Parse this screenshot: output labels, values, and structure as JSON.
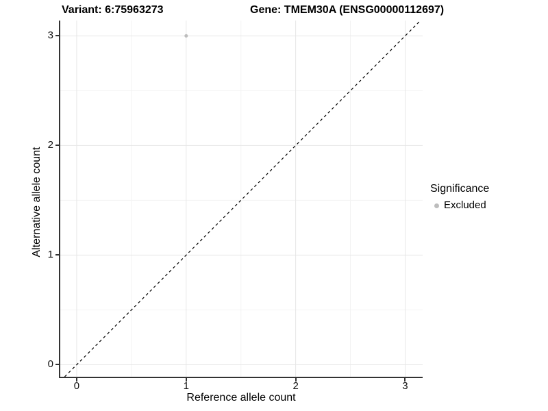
{
  "chart_data": {
    "type": "scatter",
    "titles": [
      "Variant: 6:75963273",
      "Gene: TMEM30A (ENSG00000112697)"
    ],
    "xlabel": "Reference allele count",
    "ylabel": "Alternative allele count",
    "xlim": [
      -0.15,
      3.16
    ],
    "ylim": [
      -0.11,
      3.14
    ],
    "x_ticks": [
      0,
      1,
      2,
      3
    ],
    "y_ticks": [
      0,
      1,
      2,
      3
    ],
    "x_minor_ticks": [
      0.5,
      1.5,
      2.5
    ],
    "y_minor_ticks": [
      0.5,
      1.5,
      2.5
    ],
    "grid": true,
    "series": [
      {
        "name": "Excluded",
        "color": "#bdbdbd",
        "points": [
          {
            "x": 1,
            "y": 3
          }
        ]
      }
    ],
    "reference_line": {
      "type": "identity",
      "slope": 1,
      "intercept": 0,
      "style": "dashed",
      "color": "#000000"
    },
    "legend": {
      "position": "right",
      "title": "Significance",
      "items": [
        {
          "label": "Excluded",
          "color": "#bdbdbd"
        }
      ]
    },
    "appearance": {
      "background": "#ffffff",
      "axis_color": "#333333",
      "tick_label_color": "#111111",
      "major_grid_color": "#e6e6e6",
      "minor_grid_color": "#f3f3f3",
      "point_radius_px": 2.5
    }
  }
}
